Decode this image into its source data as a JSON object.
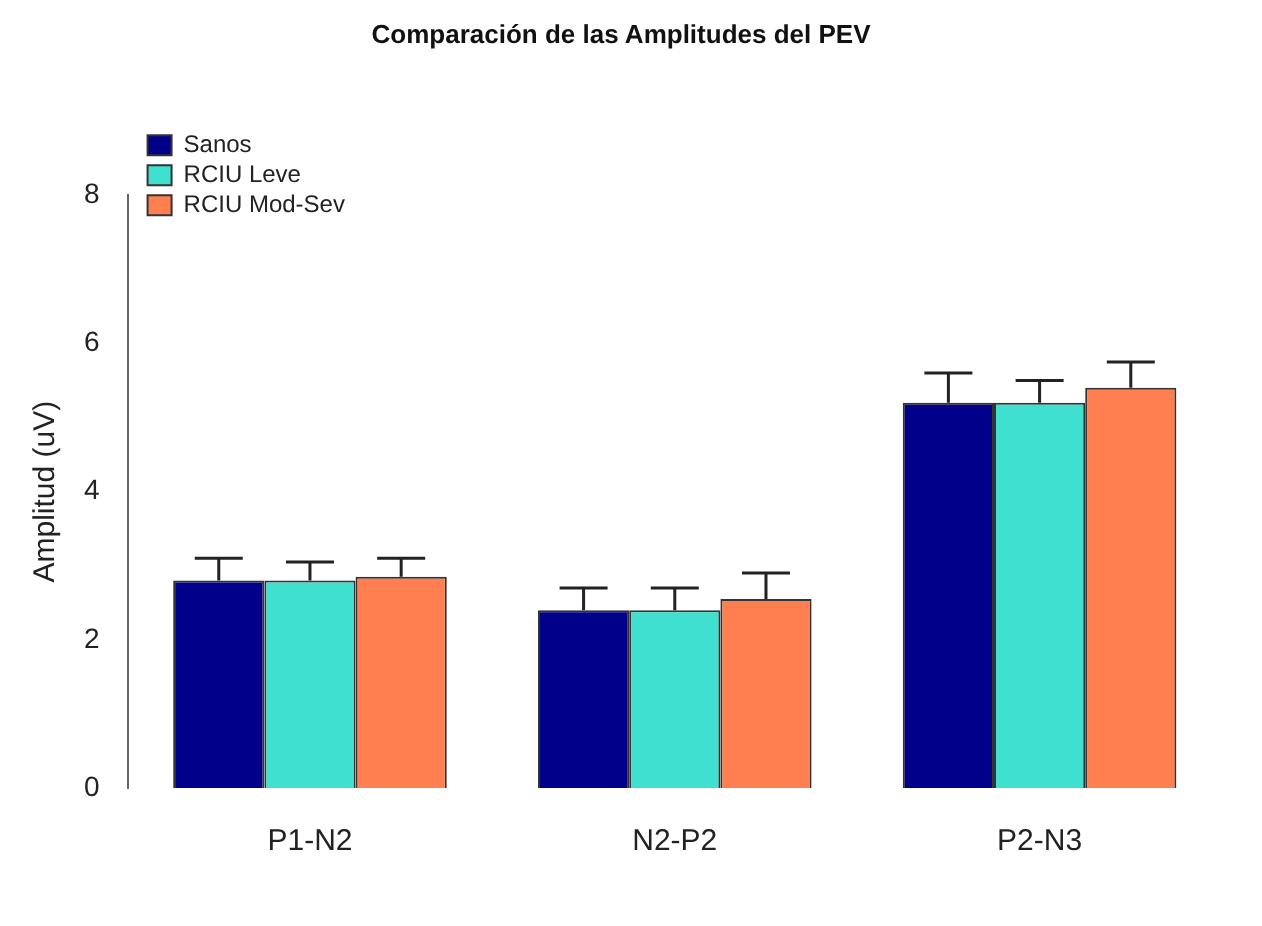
{
  "chart_data": {
    "type": "bar",
    "title": "Comparación de las Amplitudes del PEV",
    "ylabel": "Amplitud (uV)",
    "categories": [
      "P1-N2",
      "N2-P2",
      "P2-N3"
    ],
    "series": [
      {
        "name": "Sanos",
        "color": "#00008b",
        "values": [
          2.8,
          2.4,
          5.2
        ],
        "errors": [
          [
            2.8,
            3.1
          ],
          [
            2.4,
            2.7
          ],
          [
            5.2,
            5.6
          ]
        ]
      },
      {
        "name": "RCIU Leve",
        "color": "#40e0d0",
        "values": [
          2.8,
          2.4,
          5.2
        ],
        "errors": [
          [
            2.8,
            3.05
          ],
          [
            2.4,
            2.7
          ],
          [
            5.2,
            5.5
          ]
        ]
      },
      {
        "name": "RCIU Mod-Sev",
        "color": "#ff7f50",
        "values": [
          2.85,
          2.55,
          5.4
        ],
        "errors": [
          [
            2.85,
            3.1
          ],
          [
            2.55,
            2.9
          ],
          [
            5.4,
            5.75
          ]
        ]
      }
    ],
    "ylim": [
      0,
      8
    ],
    "yticks": [
      0,
      2,
      4,
      6,
      8
    ],
    "grid": false,
    "legend": "top left"
  }
}
